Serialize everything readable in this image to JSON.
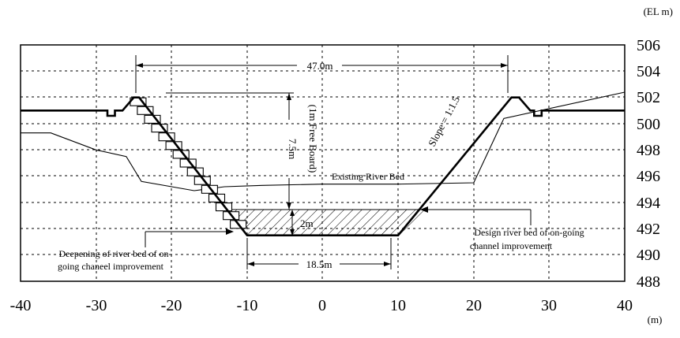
{
  "axes": {
    "y_unit": "(EL m)",
    "x_unit": "(m)",
    "y_ticks": [
      "506",
      "504",
      "502",
      "500",
      "498",
      "496",
      "494",
      "492",
      "490",
      "488"
    ],
    "x_ticks": [
      "-40",
      "-30",
      "-20",
      "-10",
      "0",
      "10",
      "20",
      "30",
      "40"
    ]
  },
  "dimensions": {
    "top_width": "47.0m",
    "bottom_width": "18.5m",
    "height": "7.5m",
    "free_board": "(1m Free Board)",
    "deepening": "2m",
    "slope": "Slope = 1:1.5"
  },
  "labels": {
    "existing_bed": "Existing River Bed",
    "design_bed_line1": "Design river bed of on-going",
    "design_bed_line2": "channel improvement",
    "deepening_line1": "Deepening of river bed of on-",
    "deepening_line2": "going chaneel improvement"
  },
  "chart_data": {
    "type": "line",
    "x_range": [
      -40,
      40
    ],
    "y_range": [
      488,
      506
    ],
    "design_section": [
      [
        -40,
        501
      ],
      [
        -28.5,
        501
      ],
      [
        -28.5,
        500.6
      ],
      [
        -27.5,
        500.6
      ],
      [
        -27.5,
        501
      ],
      [
        -26.5,
        501
      ],
      [
        -25,
        502
      ],
      [
        -24.3,
        502
      ],
      [
        -10,
        491.5
      ],
      [
        10,
        491.5
      ],
      [
        25,
        502
      ],
      [
        26,
        502
      ],
      [
        27.5,
        501
      ],
      [
        28,
        501
      ],
      [
        28,
        500.6
      ],
      [
        29,
        500.6
      ],
      [
        29,
        501
      ],
      [
        40,
        501
      ]
    ],
    "existing_bed": [
      [
        -40,
        499.3
      ],
      [
        -36,
        499.3
      ],
      [
        -30,
        498
      ],
      [
        -26,
        497.5
      ],
      [
        -24,
        495.6
      ],
      [
        -17,
        494.9
      ],
      [
        -13,
        495.2
      ],
      [
        -8,
        495.3
      ],
      [
        0,
        495.4
      ],
      [
        10,
        495.4
      ],
      [
        20,
        495.5
      ],
      [
        24,
        500.4
      ],
      [
        40,
        502.4
      ]
    ],
    "design_bed_elevation": 493.3
  }
}
